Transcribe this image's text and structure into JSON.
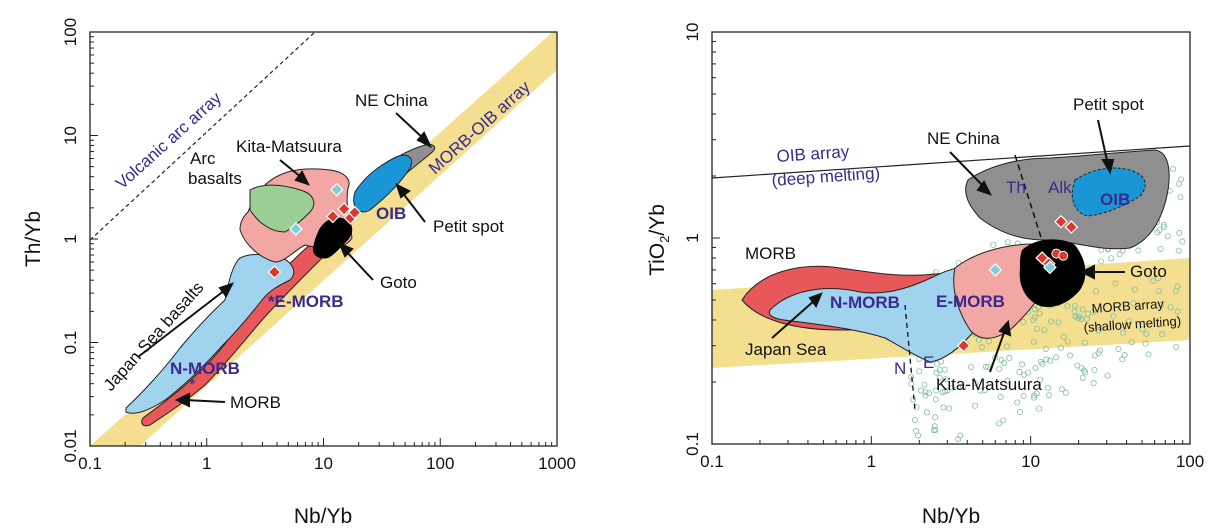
{
  "chart_data": [
    {
      "type": "scatter",
      "title": "",
      "xlabel": "Nb/Yb",
      "ylabel": "Th/Yb",
      "xscale": "log",
      "yscale": "log",
      "xlim": [
        0.1,
        1000
      ],
      "ylim": [
        0.01,
        100
      ],
      "x_ticks": [
        "0.1",
        "1",
        "10",
        "100",
        "1000"
      ],
      "y_ticks": [
        "0.01",
        "0.1",
        "1",
        "10",
        "100"
      ],
      "grid": false,
      "fields": [
        {
          "name": "MORB-OIB array",
          "color": "#f3df8f"
        },
        {
          "name": "Japan Sea basalts",
          "color": "#9fd3ee"
        },
        {
          "name": "MORB",
          "color": "#e8575a"
        },
        {
          "name": "Kita-Matsuura",
          "color": "#f2a7a4"
        },
        {
          "name": "Arc basalts",
          "color": "#9ccf95"
        },
        {
          "name": "NE China",
          "color": "#8f8f8f"
        },
        {
          "name": "Petit spot",
          "color": "#1a95d6"
        },
        {
          "name": "Goto",
          "color": "#000000"
        }
      ],
      "annotations": [
        "Volcanic arc array",
        "MORB-OIB array",
        "Arc basalts",
        "Kita-Matsuura",
        "NE China",
        "OIB",
        "Petit spot",
        "Goto",
        "E-MORB",
        "Japan Sea basalts",
        "N-MORB",
        "MORB"
      ],
      "series": [
        {
          "marker": "red-diamond",
          "color": "#d93a2b",
          "x": [
            3.8,
            12,
            15,
            17,
            18.5
          ],
          "y": [
            0.48,
            1.65,
            1.95,
            1.6,
            1.8
          ]
        },
        {
          "marker": "cyan-diamond",
          "color": "#7fcfd6",
          "x": [
            13,
            5.8
          ],
          "y": [
            3.0,
            1.25
          ]
        }
      ]
    },
    {
      "type": "scatter",
      "title": "",
      "xlabel": "Nb/Yb",
      "ylabel": "TiO2/Yb",
      "xscale": "log",
      "yscale": "log",
      "xlim": [
        0.1,
        100
      ],
      "ylim": [
        0.1,
        10
      ],
      "x_ticks": [
        "0.1",
        "1",
        "10",
        "100"
      ],
      "y_ticks": [
        "0.1",
        "1",
        "10"
      ],
      "grid": false,
      "fields": [
        {
          "name": "MORB array (shallow melting)",
          "color": "#f3df8f"
        },
        {
          "name": "MORB",
          "color": "#e8575a"
        },
        {
          "name": "Japan Sea",
          "color": "#9fd3ee"
        },
        {
          "name": "Kita-Matsuura",
          "color": "#f2a7a4"
        },
        {
          "name": "NE China",
          "color": "#8f8f8f"
        },
        {
          "name": "Petit spot",
          "color": "#1a95d6"
        },
        {
          "name": "Goto",
          "color": "#000000"
        }
      ],
      "annotations": [
        "OIB array",
        "(deep melting)",
        "NE China",
        "Petit spot",
        "Th",
        "Alk",
        "OIB",
        "MORB",
        "N-MORB",
        "E-MORB",
        "Goto",
        "MORB array",
        "(shallow melting)",
        "Japan Sea",
        "N",
        "E",
        "Kita-Matsuura"
      ],
      "series": [
        {
          "marker": "red-diamond",
          "color": "#d93a2b",
          "x": [
            3.8,
            15.5,
            18,
            11.8,
            13
          ],
          "y": [
            0.3,
            1.2,
            1.13,
            0.8,
            0.75
          ]
        },
        {
          "marker": "red-dot",
          "color": "#d93a2b",
          "x": [
            14.5,
            16
          ],
          "y": [
            0.84,
            0.82
          ]
        },
        {
          "marker": "cyan-diamond",
          "color": "#7fcfd6",
          "x": [
            6,
            13.2
          ],
          "y": [
            0.7,
            0.72
          ]
        }
      ]
    }
  ],
  "left": {
    "xlabel": "Nb/Yb",
    "ylabel": "Th/Yb",
    "x_ticks": [
      "0.1",
      "1",
      "10",
      "100",
      "1000"
    ],
    "y_ticks": [
      "0.01",
      "0.1",
      "1",
      "10",
      "100"
    ],
    "labels": {
      "volcanic_arc": "Volcanic arc array",
      "morb_oib_array": "MORB-OIB array",
      "arc": "Arc",
      "basalts": "basalts",
      "kita": "Kita-Matsuura",
      "ne_china": "NE China",
      "oib": "OIB",
      "petit": "Petit spot",
      "goto": "Goto",
      "emorb": "*E-MORB",
      "japan": "Japan Sea basalts",
      "nmorb": "N-MORB",
      "nmorb_star": "*",
      "morb": "MORB"
    }
  },
  "right": {
    "xlabel": "Nb/Yb",
    "ylabel": "TiO",
    "ylabel_sub": "2",
    "ylabel_tail": "/Yb",
    "x_ticks": [
      "0.1",
      "1",
      "10",
      "100"
    ],
    "y_ticks": [
      "0.1",
      "1",
      "10"
    ],
    "labels": {
      "oib_array": "OIB array",
      "deep": "(deep melting)",
      "ne_china": "NE China",
      "petit": "Petit spot",
      "th": "Th",
      "alk": "Alk",
      "oib": "OIB",
      "morb": "MORB",
      "nmorb": "N-MORB",
      "emorb": "E-MORB",
      "goto": "Goto",
      "morb_array": "MORB array",
      "shallow": "(shallow melting)",
      "japan": "Japan Sea",
      "n": "N",
      "e": "E",
      "kita": "Kita-Matsuura"
    }
  }
}
